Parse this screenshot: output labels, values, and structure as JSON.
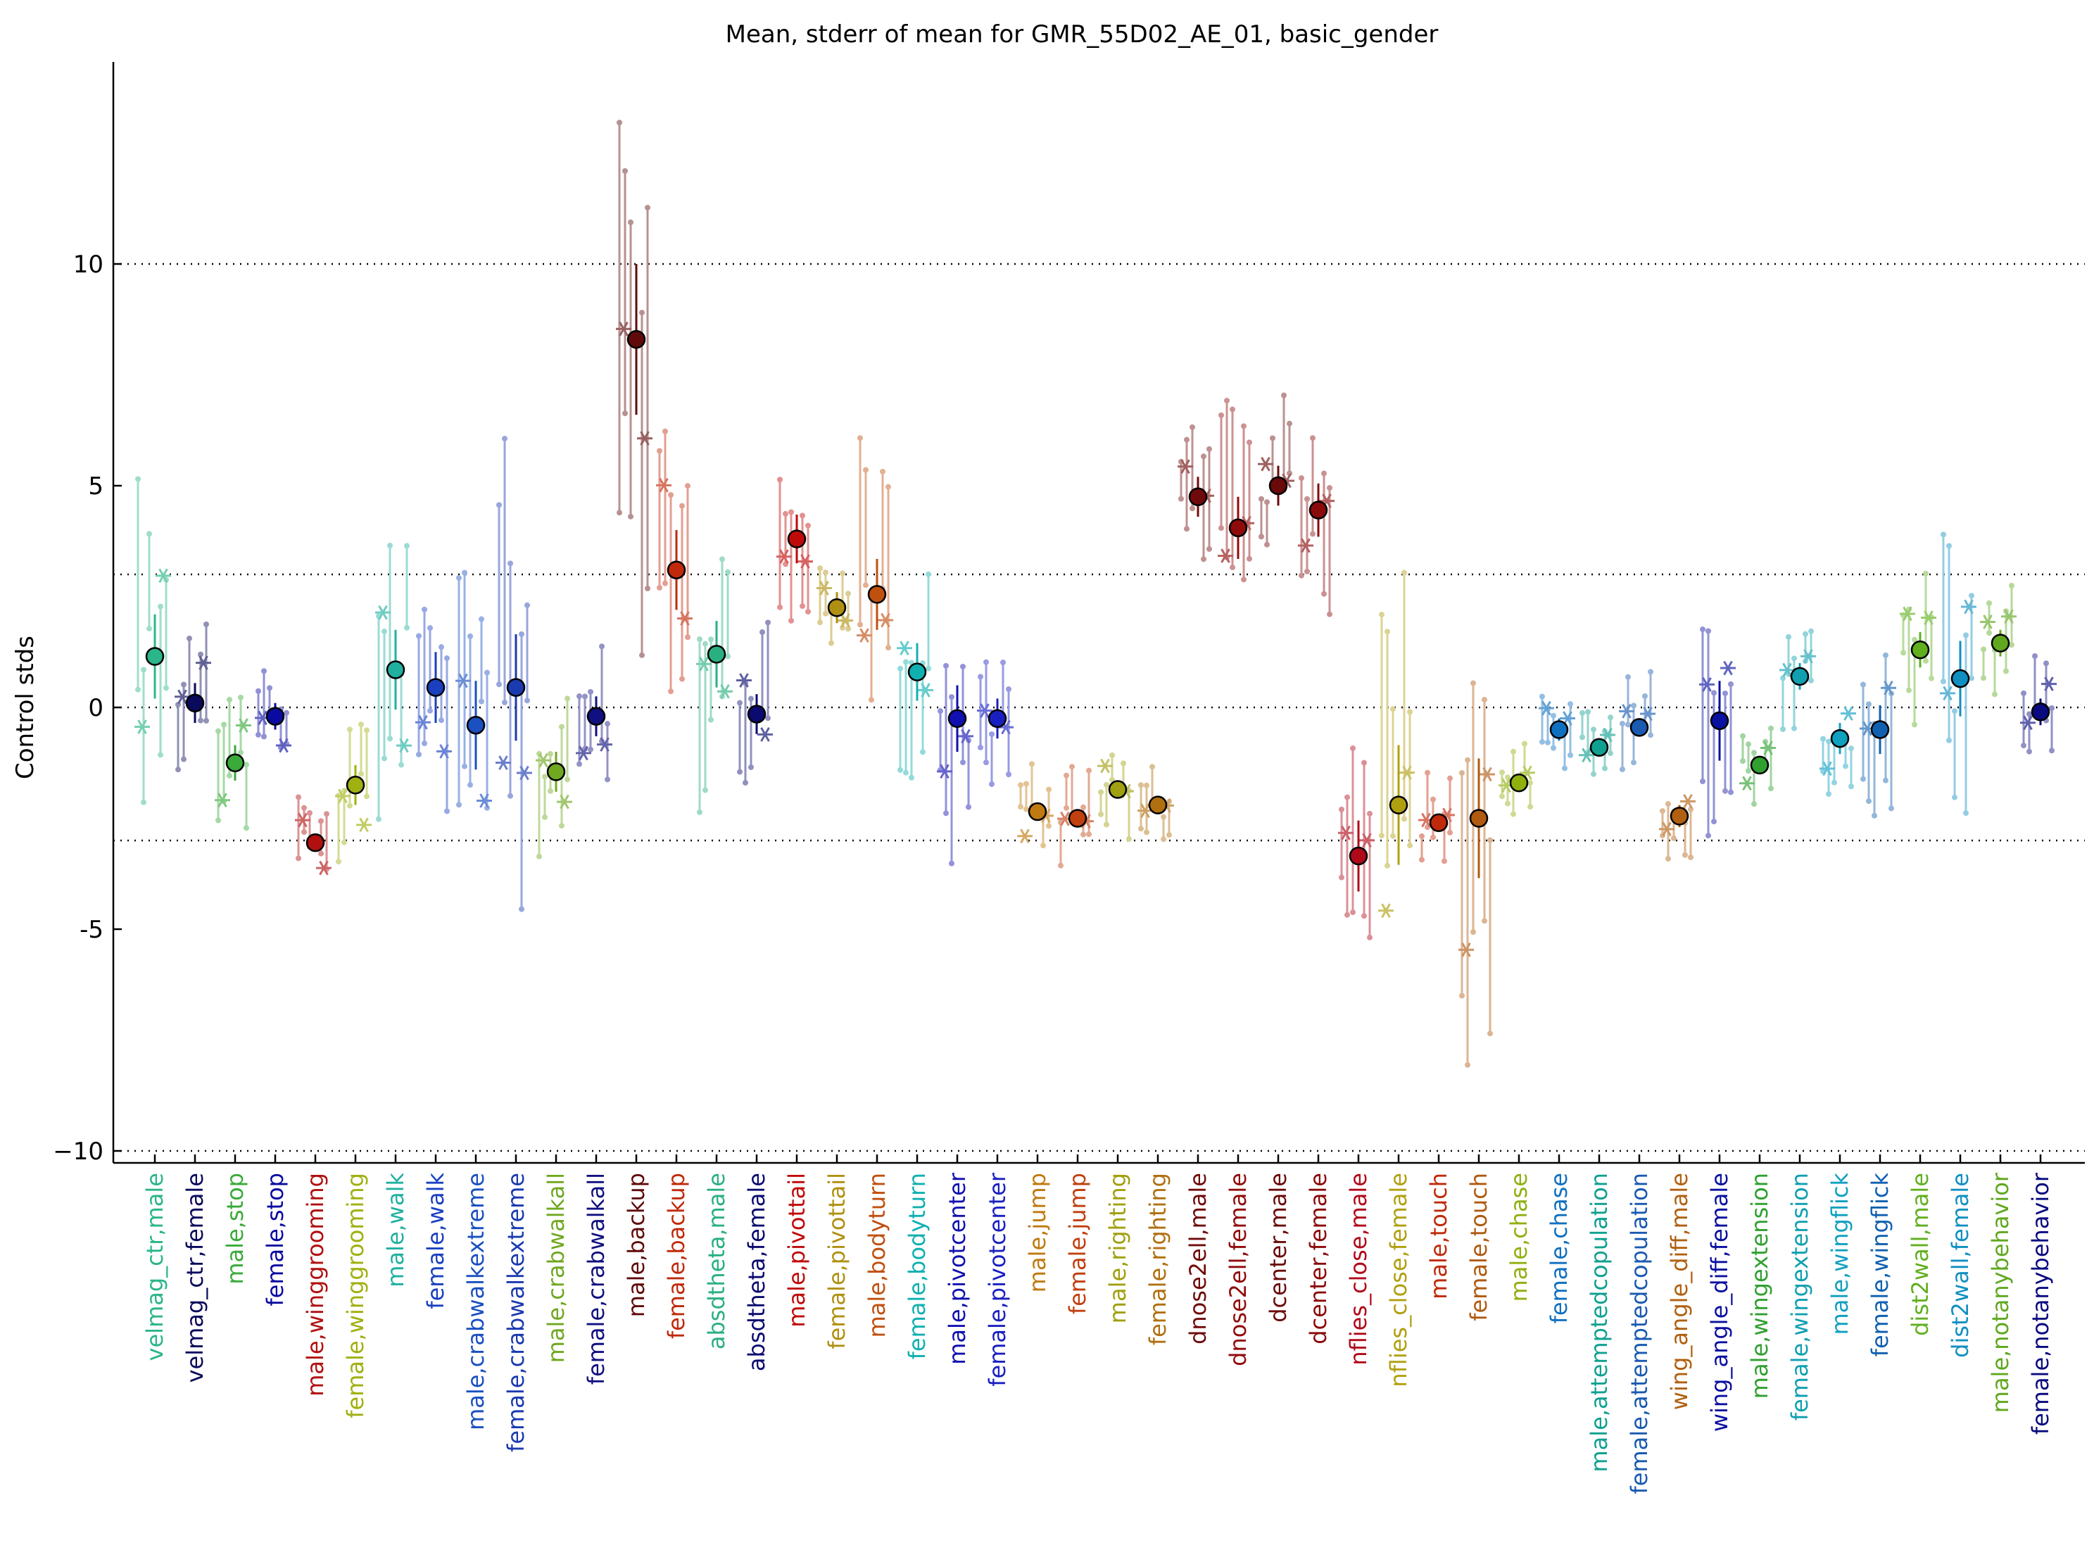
{
  "chart_data": {
    "type": "scatter",
    "title": "Mean, stderr of mean for GMR_55D02_AE_01, basic_gender",
    "xlabel": "",
    "ylabel": "Control stds",
    "ylim": [
      -10,
      14.5
    ],
    "yticks": [
      {
        "value": 10,
        "label": "10"
      },
      {
        "value": 5,
        "label": "5"
      },
      {
        "value": 0,
        "label": "0"
      },
      {
        "value": -5,
        "label": "-5"
      },
      {
        "value": -10,
        "label": "−10"
      }
    ],
    "reference_lines": [
      10,
      3,
      0,
      -3,
      -10
    ],
    "grid": false,
    "legend": "none",
    "categories": [
      "velmag_ctr,male",
      "velmag_ctr,female",
      "male,stop",
      "female,stop",
      "male,winggrooming",
      "female,winggrooming",
      "male,walk",
      "female,walk",
      "male,crabwalkextreme",
      "female,crabwalkextreme",
      "male,crabwalkall",
      "female,crabwalkall",
      "male,backup",
      "female,backup",
      "absdtheta,male",
      "absdtheta,female",
      "male,pivottail",
      "female,pivottail",
      "male,bodyturn",
      "female,bodyturn",
      "male,pivotcenter",
      "female,pivotcenter",
      "male,jump",
      "female,jump",
      "male,righting",
      "female,righting",
      "dnose2ell,male",
      "dnose2ell,female",
      "dcenter,male",
      "dcenter,female",
      "nflies_close,male",
      "nflies_close,female",
      "male,touch",
      "female,touch",
      "male,chase",
      "female,chase",
      "male,attemptedcopulation",
      "female,attemptedcopulation",
      "wing_angle_diff,male",
      "wing_angle_diff,female",
      "male,wingextension",
      "female,wingextension",
      "male,wingflick",
      "female,wingflick",
      "dist2wall,male",
      "dist2wall,female",
      "male,notanybehavior",
      "female,notanybehavior"
    ],
    "colors": [
      "#2ab58a",
      "#0a0a5c",
      "#3aaa3a",
      "#0a0aa0",
      "#b01010",
      "#a0b010",
      "#20b0a0",
      "#1a40c0",
      "#1a50c0",
      "#1a3ab0",
      "#70a820",
      "#101080",
      "#600a0a",
      "#c02a0a",
      "#2ab080",
      "#0a0a70",
      "#c00a0a",
      "#b09010",
      "#c05010",
      "#10b0b0",
      "#1010b0",
      "#1a20c0",
      "#c07a10",
      "#c04010",
      "#a0a010",
      "#b07010",
      "#700a0a",
      "#900a0a",
      "#6a0a0a",
      "#8a0a0a",
      "#b00a1a",
      "#b0a010",
      "#c02a0a",
      "#b05a10",
      "#90b010",
      "#1070c0",
      "#10a090",
      "#1a5ab0",
      "#b06010",
      "#0a10a0",
      "#30a030",
      "#10a0b0",
      "#10a0c0",
      "#1060b0",
      "#60b020",
      "#1090c0",
      "#60a820",
      "#0a0a80"
    ],
    "series": [
      {
        "values": [
          1.15,
          0.1,
          -1.25,
          -0.2,
          -3.05,
          -1.75,
          0.85,
          0.45,
          -0.4,
          0.45,
          -1.45,
          -0.2,
          8.3,
          3.1,
          1.2,
          -0.15,
          3.8,
          2.25,
          2.55,
          0.8,
          -0.25,
          -0.25,
          -2.35,
          -2.5,
          -1.85,
          -2.2,
          4.75,
          4.05,
          5.0,
          4.45,
          -3.35,
          -2.2,
          -2.6,
          -2.5,
          -1.7,
          -0.5,
          -0.9,
          -0.45,
          -2.45,
          -0.3,
          -1.3,
          0.7,
          -0.7,
          -0.5,
          1.3,
          0.65,
          1.45,
          -0.1
        ]
      },
      {
        "values": [
          0.95,
          0.45,
          0.4,
          0.3,
          0.2,
          0.45,
          0.9,
          0.8,
          1.0,
          1.2,
          0.45,
          0.45,
          1.7,
          0.9,
          0.75,
          0.45,
          0.55,
          0.35,
          0.8,
          0.65,
          0.75,
          0.45,
          0.2,
          0.2,
          0.15,
          0.15,
          0.45,
          0.7,
          0.45,
          0.6,
          0.8,
          1.35,
          0.15,
          1.35,
          0.15,
          0.25,
          0.15,
          0.2,
          0.25,
          0.9,
          0.15,
          0.3,
          0.35,
          0.55,
          0.4,
          0.85,
          0.3,
          0.3
        ]
      }
    ]
  }
}
